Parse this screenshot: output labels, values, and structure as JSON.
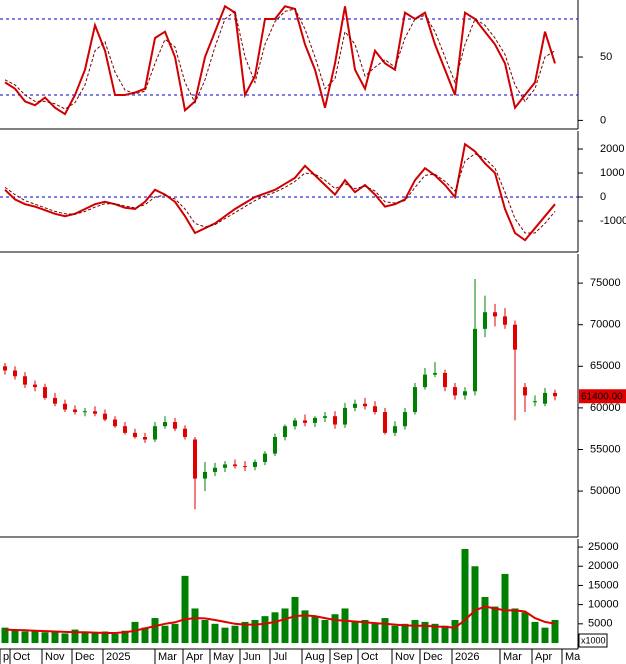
{
  "chart_data": [
    {
      "type": "oscillator",
      "xlim": [
        0,
        57.8
      ],
      "ylim": [
        -6,
        95
      ],
      "yticks": [
        0,
        50
      ],
      "hlines": [
        20,
        80
      ],
      "series": [
        {
          "name": "K",
          "color": "#d00000",
          "values": [
            30,
            25,
            15,
            12,
            18,
            10,
            5,
            20,
            40,
            75,
            55,
            20,
            20,
            22,
            25,
            65,
            70,
            50,
            8,
            15,
            50,
            70,
            90,
            85,
            20,
            35,
            80,
            80,
            90,
            88,
            60,
            40,
            10,
            45,
            90,
            40,
            25,
            55,
            45,
            40,
            85,
            80,
            85,
            60,
            40,
            20,
            85,
            80,
            70,
            60,
            45,
            10,
            20,
            30,
            70,
            45
          ]
        },
        {
          "name": "D",
          "color": "#7a0000",
          "values": [
            32,
            28,
            20,
            15,
            15,
            13,
            9,
            14,
            28,
            55,
            62,
            38,
            24,
            21,
            23,
            45,
            64,
            58,
            30,
            14,
            32,
            58,
            80,
            86,
            50,
            30,
            60,
            78,
            86,
            88,
            72,
            50,
            25,
            33,
            70,
            60,
            35,
            42,
            48,
            42,
            65,
            80,
            83,
            70,
            50,
            30,
            60,
            80,
            75,
            65,
            52,
            28,
            15,
            25,
            50,
            55
          ]
        }
      ]
    },
    {
      "type": "macd",
      "xlim": [
        0,
        57.8
      ],
      "ylim": [
        -2250,
        2750
      ],
      "yticks": [
        2000,
        1000,
        0,
        -1000
      ],
      "hlines": [
        0
      ],
      "series": [
        {
          "name": "MACD",
          "color": "#d00000",
          "values": [
            300,
            -100,
            -300,
            -400,
            -550,
            -700,
            -800,
            -700,
            -500,
            -300,
            -200,
            -300,
            -450,
            -500,
            -200,
            300,
            100,
            -200,
            -800,
            -1500,
            -1300,
            -1100,
            -800,
            -500,
            -250,
            0,
            150,
            300,
            550,
            800,
            1300,
            900,
            500,
            100,
            700,
            200,
            500,
            100,
            -400,
            -300,
            -100,
            700,
            1200,
            900,
            500,
            0,
            2200,
            1900,
            1400,
            1000,
            -500,
            -1500,
            -1800,
            -1300,
            -800,
            -300
          ]
        },
        {
          "name": "Signal",
          "color": "#7a0000",
          "values": [
            400,
            100,
            -150,
            -300,
            -450,
            -600,
            -700,
            -720,
            -600,
            -420,
            -280,
            -280,
            -380,
            -450,
            -320,
            0,
            80,
            -80,
            -500,
            -1100,
            -1250,
            -1150,
            -900,
            -650,
            -400,
            -150,
            50,
            200,
            400,
            650,
            1000,
            950,
            700,
            350,
            550,
            350,
            450,
            250,
            -200,
            -250,
            -150,
            400,
            900,
            950,
            650,
            250,
            1500,
            1800,
            1600,
            1200,
            200,
            -900,
            -1500,
            -1500,
            -1100,
            -600
          ]
        }
      ]
    },
    {
      "type": "candlestick",
      "xlim": [
        0,
        57.8
      ],
      "ylim": [
        44600,
        78500
      ],
      "yticks": [
        50000,
        55000,
        60000,
        65000,
        70000,
        75000
      ],
      "up_color": "#008000",
      "down_color": "#e00000",
      "last_label": "61400.00",
      "open": [
        65000,
        64500,
        63800,
        62800,
        62500,
        61200,
        60500,
        59800,
        59500,
        59600,
        59300,
        58600,
        57800,
        57000,
        56500,
        56200,
        57800,
        58300,
        57500,
        56200,
        51500,
        52300,
        52800,
        53200,
        53000,
        52900,
        53500,
        54500,
        56500,
        57800,
        58500,
        58200,
        58800,
        59000,
        58000,
        60000,
        60500,
        60200,
        59500,
        57000,
        57800,
        59500,
        62500,
        64000,
        64200,
        62500,
        61500,
        62000,
        69500,
        71500,
        71000,
        70000,
        62500,
        60800,
        60500,
        61800
      ],
      "high": [
        65400,
        65000,
        64300,
        63300,
        62900,
        61800,
        61000,
        60300,
        60000,
        60200,
        59800,
        59000,
        58300,
        57500,
        57000,
        58300,
        59000,
        58800,
        57900,
        56500,
        53500,
        53400,
        53600,
        53800,
        53600,
        53800,
        54800,
        56900,
        58000,
        58800,
        59200,
        59000,
        59500,
        59600,
        60600,
        61000,
        61200,
        60800,
        60000,
        58400,
        60000,
        63000,
        64800,
        65500,
        64600,
        63000,
        62500,
        75500,
        73500,
        72500,
        72000,
        70500,
        63000,
        61500,
        62400,
        62200
      ],
      "low": [
        64000,
        63400,
        62400,
        62000,
        61000,
        60200,
        59500,
        59200,
        59000,
        59000,
        58400,
        57600,
        56800,
        56300,
        55800,
        55900,
        57500,
        57200,
        56200,
        47800,
        50000,
        51800,
        52300,
        52700,
        52400,
        52500,
        53100,
        54200,
        56100,
        57400,
        57800,
        57700,
        58300,
        57500,
        57600,
        59600,
        59800,
        59200,
        56800,
        56600,
        57400,
        59200,
        62200,
        63700,
        62000,
        61000,
        61000,
        61500,
        68500,
        69800,
        69500,
        58500,
        59500,
        60200,
        60200,
        60900
      ],
      "close": [
        64500,
        63800,
        62800,
        62500,
        61200,
        60500,
        59800,
        59500,
        59600,
        59300,
        58600,
        57800,
        57000,
        56500,
        56200,
        57800,
        58300,
        57500,
        56500,
        51500,
        52300,
        52800,
        53200,
        53000,
        52900,
        53500,
        54500,
        56500,
        57800,
        58500,
        58200,
        58800,
        59000,
        58000,
        60000,
        60500,
        60200,
        59500,
        57000,
        57800,
        59500,
        62500,
        64000,
        64200,
        62500,
        61500,
        62000,
        69500,
        71500,
        71000,
        70000,
        67000,
        61500,
        60800,
        61800,
        61400
      ]
    },
    {
      "type": "volume",
      "xlim": [
        0,
        57.8
      ],
      "ylim": [
        -1300,
        27100
      ],
      "yticks": [
        5000,
        10000,
        15000,
        20000,
        25000
      ],
      "unit_label": "x1000",
      "color": "#008000",
      "ma_color": "#e00000",
      "values": [
        4000,
        3500,
        3000,
        3200,
        2800,
        3000,
        2500,
        3500,
        2800,
        2600,
        3000,
        2400,
        3200,
        5500,
        4000,
        6500,
        4500,
        5000,
        17500,
        9000,
        6000,
        5000,
        4000,
        4500,
        5500,
        6000,
        7000,
        8000,
        9000,
        12000,
        8500,
        7000,
        6000,
        7500,
        9000,
        5500,
        6000,
        5000,
        6500,
        4500,
        5000,
        6000,
        5500,
        5000,
        4500,
        6000,
        24500,
        20000,
        12000,
        9500,
        18000,
        9000,
        8000,
        5500,
        4000,
        6000
      ],
      "ma": [
        3500,
        3400,
        3300,
        3200,
        3100,
        3000,
        2900,
        2800,
        2800,
        2700,
        2600,
        2600,
        2800,
        3200,
        3800,
        4400,
        5000,
        5400,
        6200,
        6500,
        6400,
        6000,
        5500,
        5000,
        4800,
        4800,
        5000,
        5500,
        6200,
        7000,
        7200,
        7000,
        6500,
        6000,
        5800,
        5600,
        5400,
        5200,
        5000,
        4800,
        4600,
        4500,
        4500,
        4300,
        4200,
        4000,
        6000,
        8500,
        9500,
        9000,
        8500,
        8500,
        8200,
        6500,
        5500,
        5000
      ],
      "xticks": [
        {
          "value": 0,
          "label": "p"
        },
        {
          "value": 1.0,
          "label": "Oct"
        },
        {
          "value": 4.2,
          "label": "Nov"
        },
        {
          "value": 7.2,
          "label": "Dec"
        },
        {
          "value": 10.3,
          "label": "2025"
        },
        {
          "value": 15.5,
          "label": "Mar"
        },
        {
          "value": 18.3,
          "label": "Apr"
        },
        {
          "value": 21.0,
          "label": "May"
        },
        {
          "value": 24.0,
          "label": "Jun"
        },
        {
          "value": 27.0,
          "label": "Jul"
        },
        {
          "value": 30.2,
          "label": "Aug"
        },
        {
          "value": 33.0,
          "label": "Sep"
        },
        {
          "value": 35.8,
          "label": "Oct"
        },
        {
          "value": 39.2,
          "label": "Nov"
        },
        {
          "value": 42.0,
          "label": "Dec"
        },
        {
          "value": 45.2,
          "label": "2026"
        },
        {
          "value": 50.0,
          "label": "Mar"
        },
        {
          "value": 53.2,
          "label": "Apr"
        },
        {
          "value": 56.2,
          "label": "Ma"
        }
      ]
    }
  ]
}
